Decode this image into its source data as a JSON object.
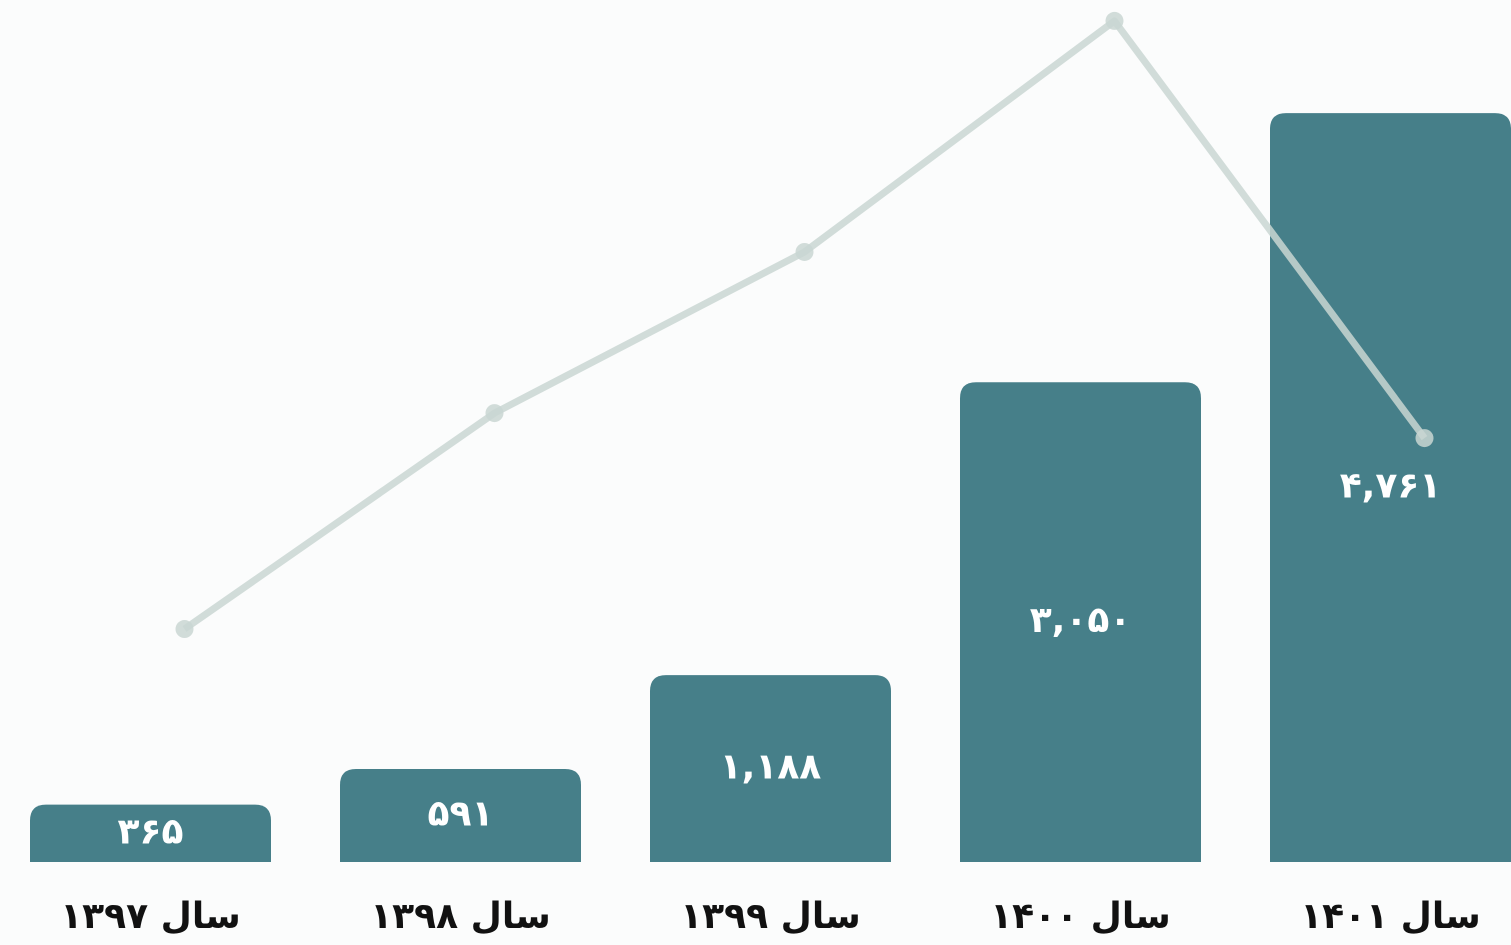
{
  "chart_data": {
    "type": "bar",
    "categories": [
      "سال ۱۳۹۷",
      "سال ۱۳۹۸",
      "سال ۱۳۹۹",
      "سال ۱۴۰۰",
      "سال ۱۴۰۱"
    ],
    "series": [
      {
        "type": "bar",
        "color": "#467f89",
        "values": [
          365,
          591,
          1188,
          3050,
          4761
        ],
        "value_labels": [
          "۳۶۵",
          "۵۹۱",
          "۱,۱۸۸",
          "۳,۰۵۰",
          "۴,۷۶۱"
        ]
      },
      {
        "type": "line",
        "color": "#c9d6d2",
        "values": [
          1481,
          2854,
          3878,
          5347,
          2695
        ]
      }
    ],
    "ylim": [
      0,
      5480
    ]
  }
}
